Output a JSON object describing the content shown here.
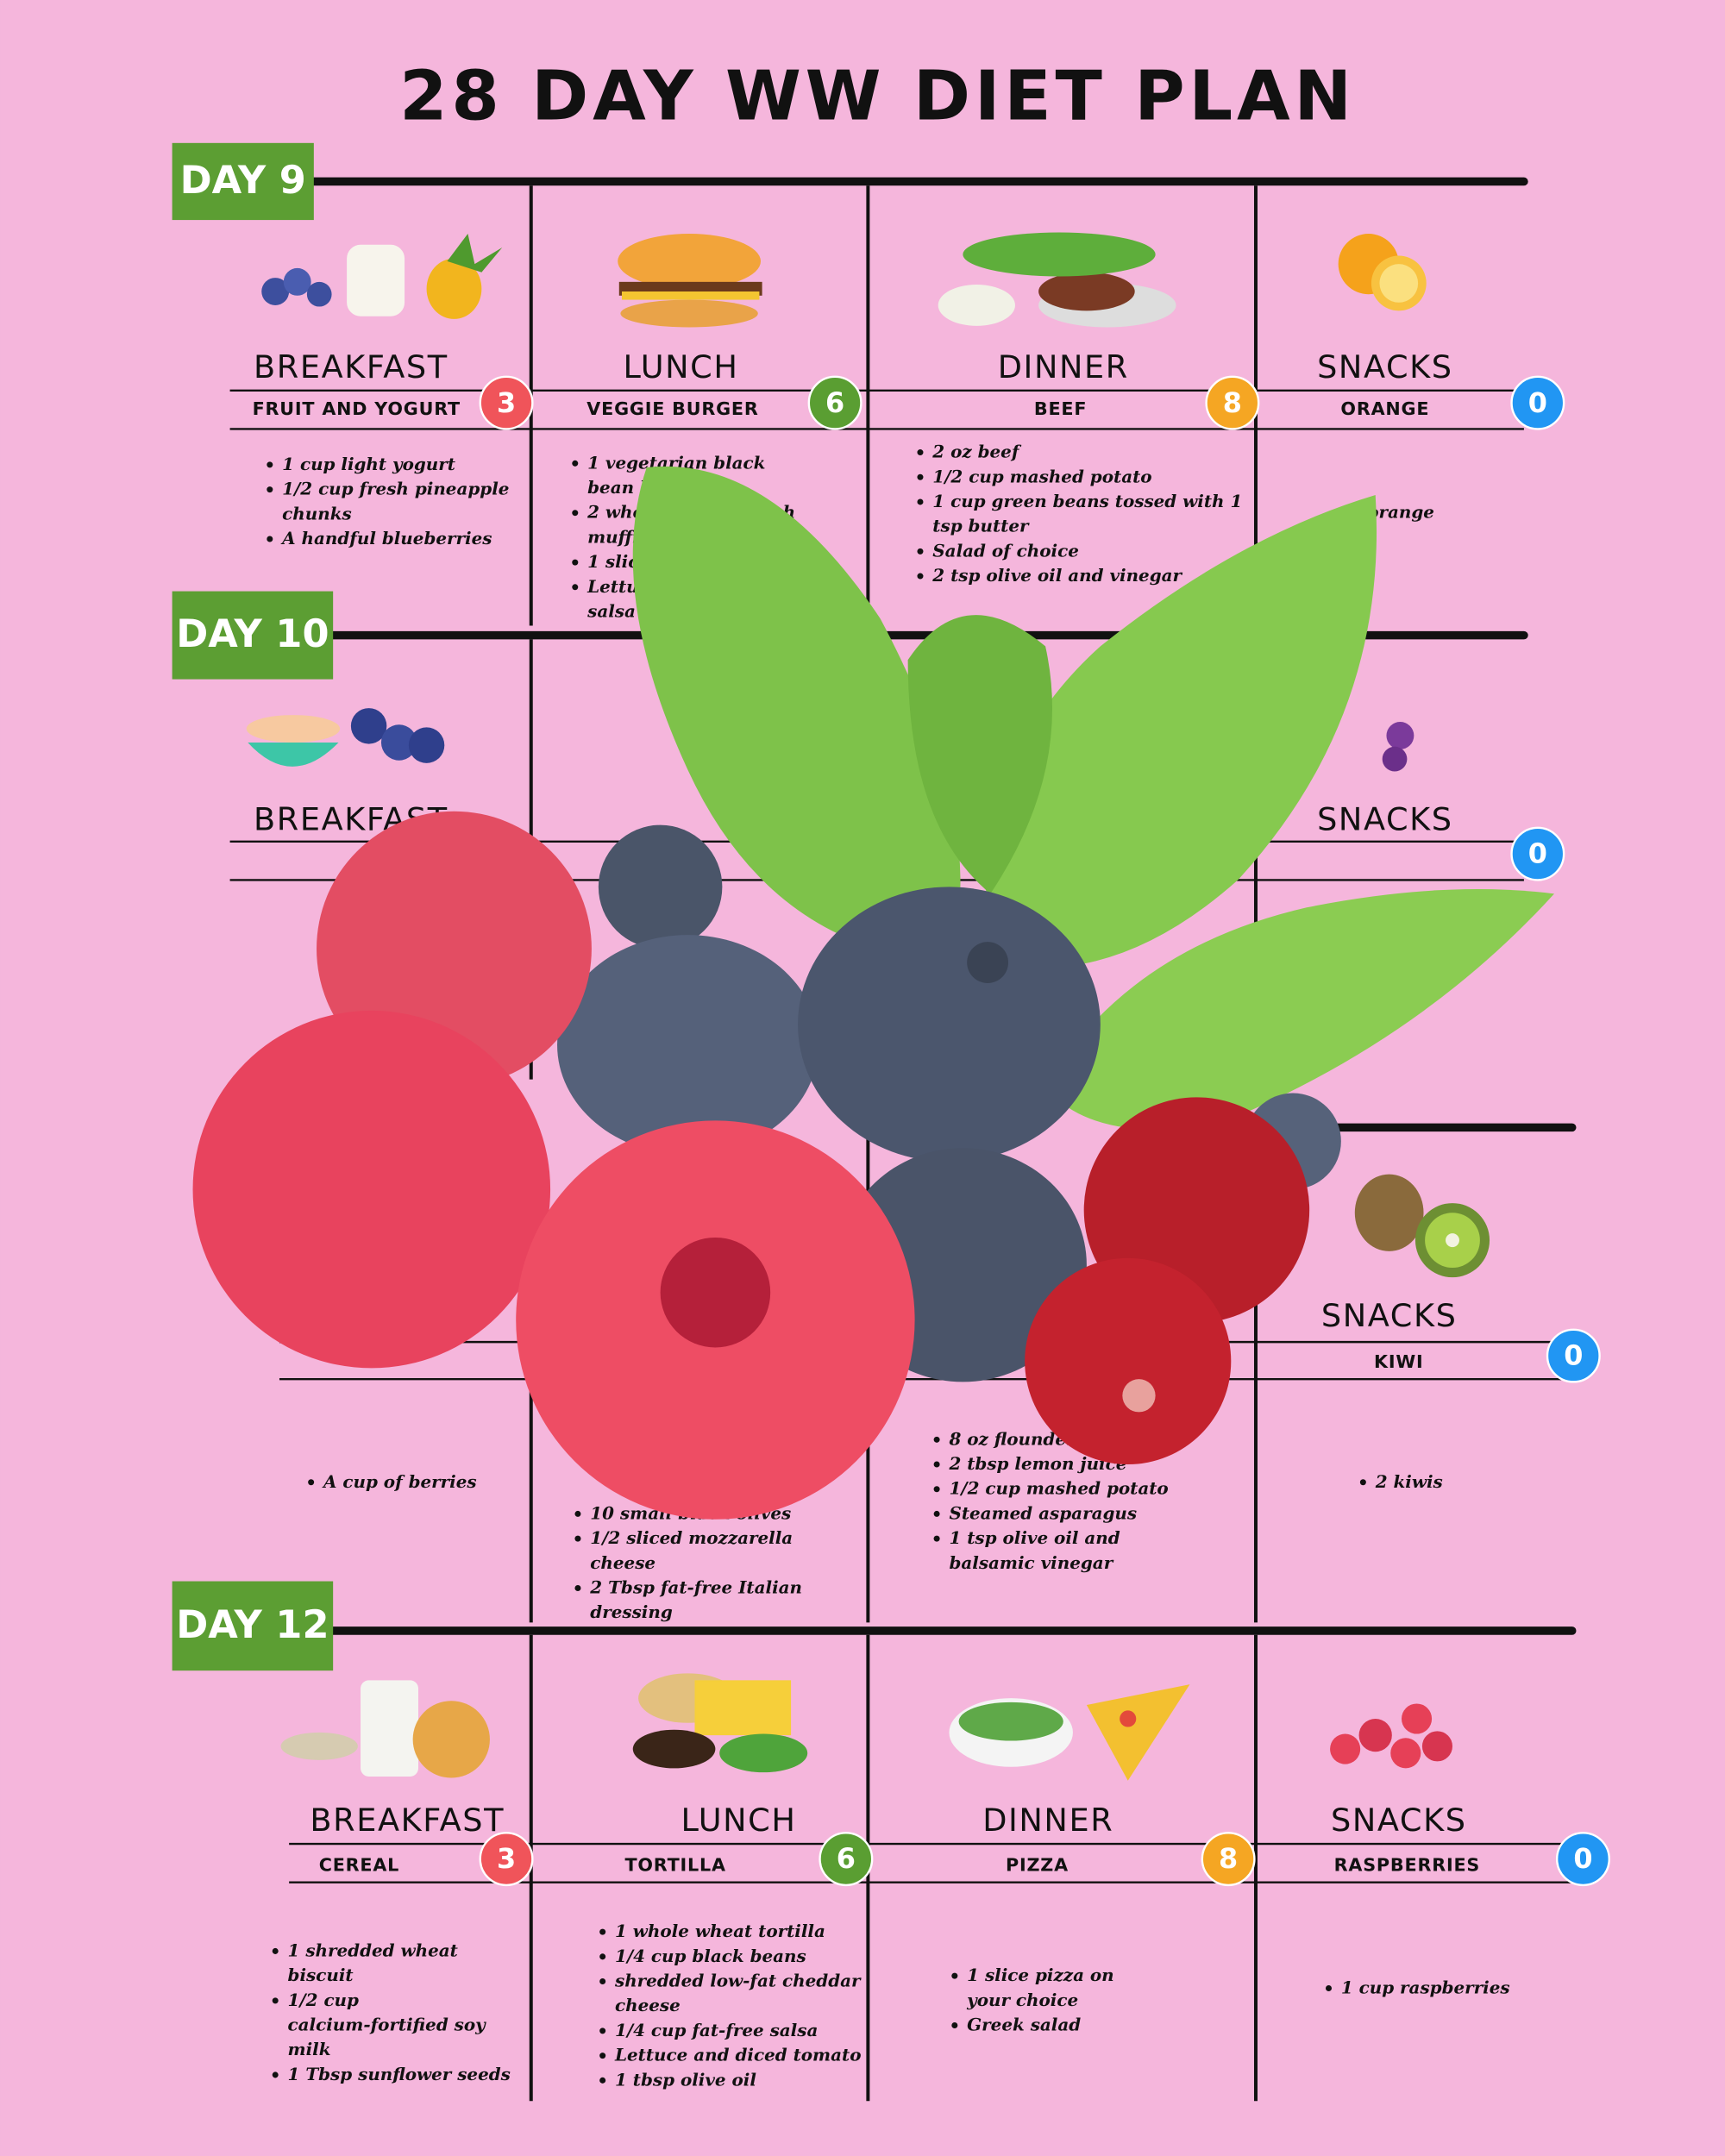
{
  "title": "28 DAY WW DIET PLAN",
  "days": [
    {
      "label": "DAY 9",
      "meals": [
        {
          "meal": "BREAKFAST",
          "dish": "FRUIT AND YOGURT",
          "points": 3,
          "items": [
            "1 cup light yogurt",
            "1/2 cup fresh pineapple chunks",
            "A handful blueberries"
          ]
        },
        {
          "meal": "LUNCH",
          "dish": "VEGGIE BURGER",
          "points": 6,
          "items": [
            "1 vegetarian black bean burger",
            "2 whole grain english muffin",
            "1 slice low-fat cheese",
            "Lettuce and tomato salsa"
          ]
        },
        {
          "meal": "DINNER",
          "dish": "BEEF",
          "points": 8,
          "items": [
            "2 oz beef",
            "1/2 cup mashed potato",
            "1 cup green beans tossed with 1 tsp butter",
            "Salad of choice",
            "2 tsp olive oil and vinegar"
          ]
        },
        {
          "meal": "SNACKS",
          "dish": "ORANGE",
          "points": 0,
          "items": [
            "1 orange"
          ]
        }
      ]
    },
    {
      "label": "DAY 10",
      "meals": [
        {
          "meal": "BREAKFAST"
        },
        {},
        {},
        {
          "meal": "SNACKS",
          "points": 0
        }
      ]
    },
    {
      "meals": [
        {
          "items": [
            "A cup of berries"
          ]
        },
        {
          "items": [
            "10 small black olives",
            "1/2 sliced mozzarella cheese",
            "2 Tbsp fat-free Italian dressing"
          ]
        },
        {
          "items": [
            "8 oz flounder",
            "2 tbsp lemon juice",
            "1/2 cup mashed potato",
            "Steamed asparagus",
            "1 tsp olive oil and balsamic vinegar"
          ]
        },
        {
          "meal": "SNACKS",
          "dish": "KIWI",
          "points": 0,
          "items": [
            "2 kiwis"
          ]
        }
      ]
    },
    {
      "label": "DAY 12",
      "meals": [
        {
          "meal": "BREAKFAST",
          "dish": "CEREAL",
          "points": 3,
          "items": [
            "1 shredded wheat biscuit",
            "1/2 cup calcium-fortified soy milk",
            "1 Tbsp sunflower seeds"
          ]
        },
        {
          "meal": "LUNCH",
          "dish": "TORTILLA",
          "points": 6,
          "items": [
            "1 whole wheat tortilla",
            "1/4 cup black beans",
            "shredded low-fat cheddar cheese",
            "1/4 cup fat-free salsa",
            "Lettuce and diced tomato",
            "1 tbsp olive oil"
          ]
        },
        {
          "meal": "DINNER",
          "dish": "PIZZA",
          "points": 8,
          "items": [
            "1 slice pizza on your choice",
            "Greek salad"
          ]
        },
        {
          "meal": "SNACKS",
          "dish": "RASPBERRIES",
          "points": 0,
          "items": [
            "1 cup raspberries"
          ]
        }
      ]
    }
  ]
}
